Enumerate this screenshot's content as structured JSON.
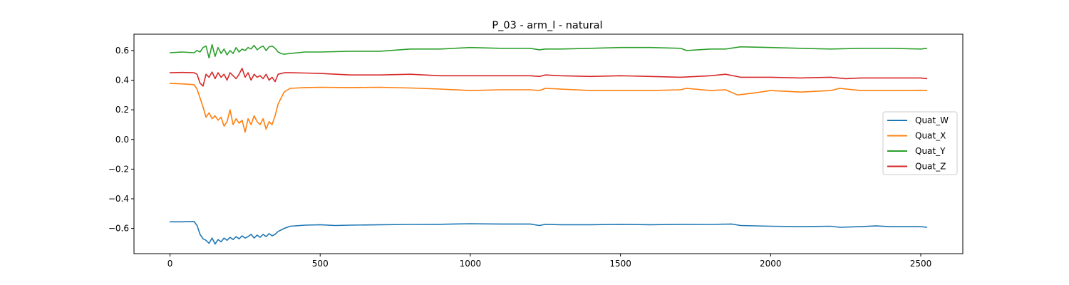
{
  "chart_data": {
    "type": "line",
    "title": "P_03 - arm_l - natural",
    "xlabel": "",
    "ylabel": "",
    "xlim": [
      -120,
      2640
    ],
    "ylim": [
      -0.77,
      0.71
    ],
    "xticks": [
      0,
      500,
      1000,
      1500,
      2000,
      2500
    ],
    "xtick_labels": [
      "0",
      "500",
      "1000",
      "1500",
      "2000",
      "2500"
    ],
    "yticks": [
      -0.6,
      -0.4,
      -0.2,
      0.0,
      0.2,
      0.4,
      0.6
    ],
    "ytick_labels": [
      "−0.6",
      "−0.4",
      "−0.2",
      "0.0",
      "0.2",
      "0.4",
      "0.6"
    ],
    "grid": false,
    "legend_position": "right",
    "series": [
      {
        "name": "Quat_W",
        "color": "#1f77b4",
        "x": [
          0,
          40,
          80,
          90,
          100,
          110,
          120,
          130,
          140,
          150,
          160,
          170,
          180,
          190,
          200,
          210,
          220,
          230,
          240,
          250,
          260,
          270,
          280,
          290,
          300,
          310,
          320,
          330,
          340,
          350,
          360,
          380,
          400,
          450,
          500,
          550,
          600,
          700,
          800,
          900,
          1000,
          1100,
          1200,
          1230,
          1250,
          1300,
          1400,
          1500,
          1600,
          1700,
          1800,
          1870,
          1900,
          2000,
          2100,
          2200,
          2230,
          2300,
          2350,
          2400,
          2500,
          2520
        ],
        "y": [
          -0.555,
          -0.555,
          -0.553,
          -0.58,
          -0.64,
          -0.67,
          -0.68,
          -0.7,
          -0.665,
          -0.705,
          -0.675,
          -0.69,
          -0.665,
          -0.68,
          -0.66,
          -0.675,
          -0.655,
          -0.67,
          -0.65,
          -0.665,
          -0.655,
          -0.64,
          -0.665,
          -0.645,
          -0.66,
          -0.64,
          -0.655,
          -0.635,
          -0.65,
          -0.64,
          -0.62,
          -0.6,
          -0.585,
          -0.578,
          -0.575,
          -0.58,
          -0.578,
          -0.575,
          -0.573,
          -0.572,
          -0.568,
          -0.57,
          -0.57,
          -0.58,
          -0.572,
          -0.575,
          -0.575,
          -0.572,
          -0.575,
          -0.572,
          -0.573,
          -0.57,
          -0.58,
          -0.585,
          -0.588,
          -0.585,
          -0.592,
          -0.588,
          -0.583,
          -0.588,
          -0.588,
          -0.592
        ]
      },
      {
        "name": "Quat_X",
        "color": "#ff7f0e",
        "x": [
          0,
          40,
          80,
          90,
          100,
          110,
          120,
          130,
          140,
          150,
          160,
          170,
          180,
          190,
          200,
          210,
          220,
          230,
          240,
          250,
          260,
          270,
          280,
          290,
          300,
          310,
          320,
          330,
          340,
          350,
          360,
          370,
          380,
          400,
          450,
          500,
          600,
          700,
          800,
          900,
          1000,
          1100,
          1200,
          1230,
          1250,
          1300,
          1400,
          1500,
          1600,
          1700,
          1720,
          1800,
          1850,
          1890,
          1950,
          2000,
          2100,
          2200,
          2230,
          2300,
          2400,
          2500,
          2520
        ],
        "y": [
          0.378,
          0.375,
          0.37,
          0.34,
          0.28,
          0.22,
          0.15,
          0.18,
          0.14,
          0.16,
          0.13,
          0.15,
          0.09,
          0.12,
          0.2,
          0.1,
          0.14,
          0.11,
          0.13,
          0.05,
          0.14,
          0.1,
          0.16,
          0.12,
          0.1,
          0.14,
          0.07,
          0.12,
          0.1,
          0.16,
          0.24,
          0.28,
          0.32,
          0.345,
          0.35,
          0.352,
          0.35,
          0.352,
          0.347,
          0.34,
          0.33,
          0.335,
          0.335,
          0.33,
          0.345,
          0.34,
          0.33,
          0.33,
          0.33,
          0.335,
          0.345,
          0.33,
          0.335,
          0.3,
          0.315,
          0.33,
          0.32,
          0.33,
          0.345,
          0.33,
          0.33,
          0.332,
          0.33
        ]
      },
      {
        "name": "Quat_Y",
        "color": "#2ca02c",
        "x": [
          0,
          40,
          80,
          90,
          100,
          110,
          120,
          130,
          140,
          150,
          160,
          170,
          180,
          190,
          200,
          210,
          220,
          230,
          240,
          250,
          260,
          270,
          280,
          290,
          300,
          310,
          320,
          330,
          340,
          350,
          360,
          370,
          380,
          400,
          450,
          500,
          600,
          700,
          800,
          900,
          1000,
          1100,
          1200,
          1230,
          1250,
          1300,
          1400,
          1500,
          1600,
          1700,
          1720,
          1800,
          1850,
          1900,
          2000,
          2100,
          2200,
          2300,
          2400,
          2500,
          2520
        ],
        "y": [
          0.585,
          0.59,
          0.585,
          0.6,
          0.59,
          0.62,
          0.63,
          0.55,
          0.64,
          0.56,
          0.62,
          0.58,
          0.61,
          0.57,
          0.6,
          0.58,
          0.62,
          0.59,
          0.61,
          0.6,
          0.62,
          0.61,
          0.635,
          0.605,
          0.62,
          0.63,
          0.6,
          0.625,
          0.63,
          0.615,
          0.59,
          0.58,
          0.575,
          0.58,
          0.59,
          0.59,
          0.595,
          0.595,
          0.61,
          0.61,
          0.62,
          0.615,
          0.615,
          0.605,
          0.61,
          0.61,
          0.615,
          0.62,
          0.62,
          0.615,
          0.6,
          0.61,
          0.61,
          0.625,
          0.62,
          0.615,
          0.61,
          0.615,
          0.615,
          0.61,
          0.615
        ]
      },
      {
        "name": "Quat_Z",
        "color": "#d62728",
        "x": [
          0,
          40,
          80,
          90,
          100,
          110,
          120,
          130,
          140,
          150,
          160,
          170,
          180,
          190,
          200,
          210,
          220,
          230,
          240,
          250,
          260,
          270,
          280,
          290,
          300,
          310,
          320,
          330,
          340,
          350,
          360,
          380,
          400,
          450,
          500,
          600,
          700,
          800,
          900,
          1000,
          1100,
          1200,
          1230,
          1250,
          1300,
          1400,
          1500,
          1600,
          1700,
          1800,
          1850,
          1900,
          2000,
          2100,
          2200,
          2250,
          2300,
          2400,
          2500,
          2520
        ],
        "y": [
          0.45,
          0.452,
          0.45,
          0.44,
          0.38,
          0.36,
          0.44,
          0.42,
          0.455,
          0.41,
          0.45,
          0.42,
          0.44,
          0.4,
          0.45,
          0.43,
          0.41,
          0.44,
          0.48,
          0.42,
          0.45,
          0.4,
          0.44,
          0.42,
          0.43,
          0.41,
          0.44,
          0.4,
          0.42,
          0.39,
          0.44,
          0.45,
          0.45,
          0.448,
          0.445,
          0.435,
          0.435,
          0.44,
          0.43,
          0.43,
          0.43,
          0.43,
          0.425,
          0.435,
          0.43,
          0.425,
          0.43,
          0.425,
          0.42,
          0.43,
          0.44,
          0.42,
          0.42,
          0.415,
          0.42,
          0.41,
          0.415,
          0.415,
          0.415,
          0.41
        ]
      }
    ]
  }
}
